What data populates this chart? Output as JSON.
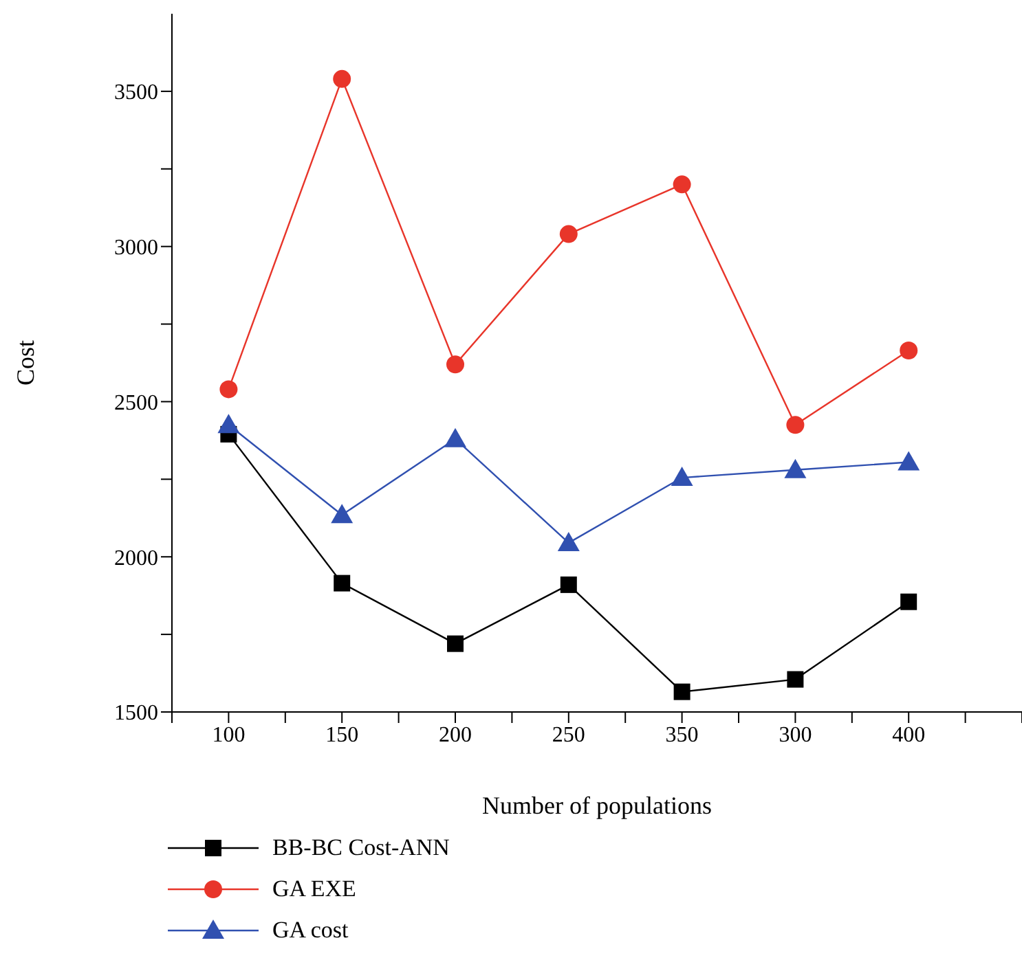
{
  "chart_data": {
    "type": "line",
    "xlabel": "Number of populations",
    "ylabel": "Cost",
    "categories": [
      "100",
      "150",
      "200",
      "250",
      "350",
      "300",
      "400"
    ],
    "series": [
      {
        "name": "BB-BC Cost-ANN",
        "color": "#000000",
        "marker": "square",
        "values": [
          2395,
          1915,
          1720,
          1910,
          1565,
          1605,
          1855
        ]
      },
      {
        "name": "GA EXE",
        "color": "#e8352a",
        "marker": "circle",
        "values": [
          2540,
          3540,
          2620,
          3040,
          3200,
          2425,
          2665
        ]
      },
      {
        "name": "GA cost",
        "color": "#3050b0",
        "marker": "triangle",
        "values": [
          2425,
          2135,
          2380,
          2045,
          2255,
          2280,
          2305
        ]
      }
    ],
    "ylim": [
      1500,
      3750
    ],
    "yticks": [
      1500,
      {
        "value": 1750,
        "label": null
      },
      2000,
      {
        "value": 2250,
        "label": null
      },
      2500,
      {
        "value": 2750,
        "label": null
      },
      3000,
      {
        "value": 3250,
        "label": null
      },
      3500
    ],
    "legend": "bottom",
    "line_style": "solid"
  }
}
